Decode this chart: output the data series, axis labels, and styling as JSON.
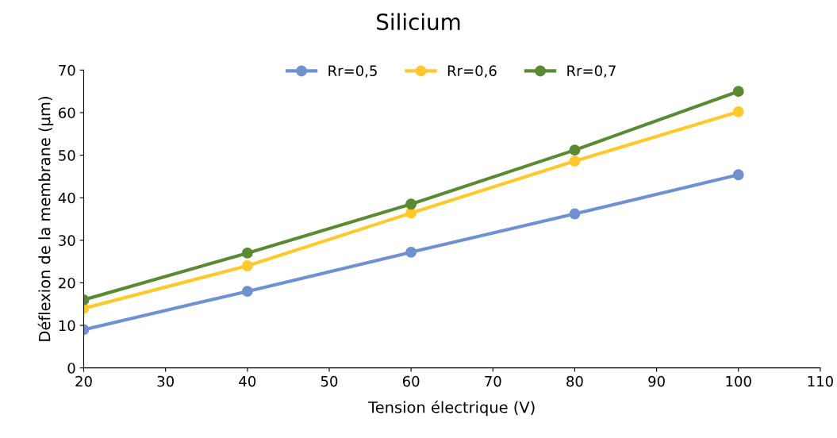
{
  "chart_data": {
    "type": "line",
    "title": "Silicium",
    "xlabel": "Tension électrique (V)",
    "ylabel": "Déflexion de la membrane (µm)",
    "x": [
      20,
      40,
      60,
      80,
      100
    ],
    "series": [
      {
        "name": "Rr=0,5",
        "color": "#6f91d0",
        "values": [
          9,
          18,
          27.2,
          36.2,
          45.4
        ]
      },
      {
        "name": "Rr=0,6",
        "color": "#ffc92e",
        "values": [
          14,
          24,
          36.4,
          48.6,
          60.2
        ]
      },
      {
        "name": "Rr=0,7",
        "color": "#5a8a33",
        "values": [
          16,
          27,
          38.5,
          51.2,
          65
        ]
      }
    ],
    "xlim": [
      20,
      110
    ],
    "xticks": [
      20,
      30,
      40,
      50,
      60,
      70,
      80,
      90,
      100,
      110
    ],
    "ylim": [
      0,
      70
    ],
    "yticks": [
      0,
      10,
      20,
      30,
      40,
      50,
      60,
      70
    ],
    "grid": false,
    "legend": "top",
    "marker": "circle",
    "line_style": "solid"
  }
}
